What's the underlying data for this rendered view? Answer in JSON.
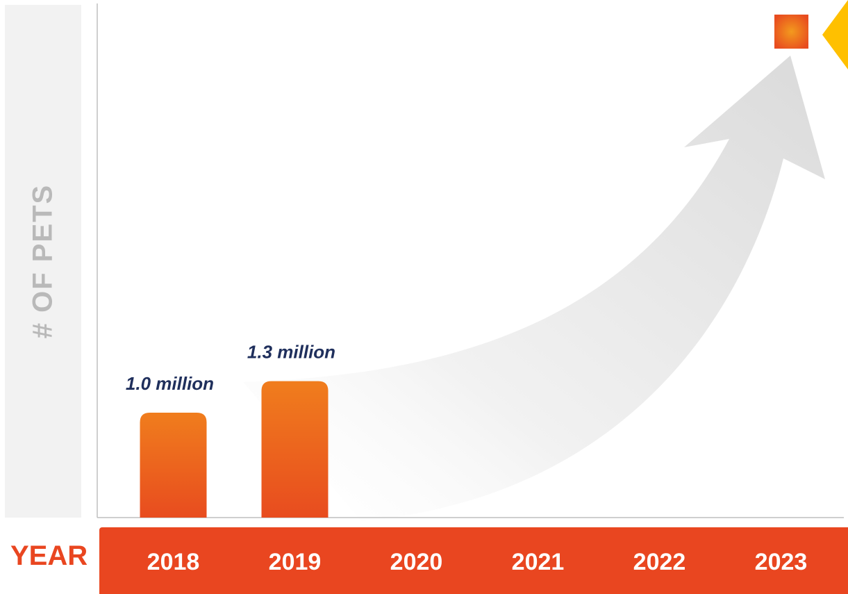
{
  "chart_data": {
    "type": "bar",
    "xlabel": "YEAR",
    "ylabel": "# OF PETS",
    "categories": [
      "2018",
      "2019",
      "2020",
      "2021",
      "2022",
      "2023"
    ],
    "values": [
      1.0,
      1.3,
      null,
      null,
      null,
      null
    ],
    "data_labels": [
      "1.0 million",
      "1.3 million",
      "",
      "",
      "",
      ""
    ],
    "unit": "million",
    "ylim": [
      0,
      4.9
    ],
    "trend_arrow": "upward curved arrow toward 2023",
    "colors": {
      "bar_top": "#f07d1d",
      "bar_bottom": "#e84c1f",
      "year_band": "#e94620",
      "year_text": "#ffffff",
      "data_label": "#1f2f5c",
      "axis_label": "#b9b9b9",
      "arrow": "#e8e8e8",
      "accent_square": "#ea5a1c",
      "accent_diamond": "#ffc000"
    }
  }
}
